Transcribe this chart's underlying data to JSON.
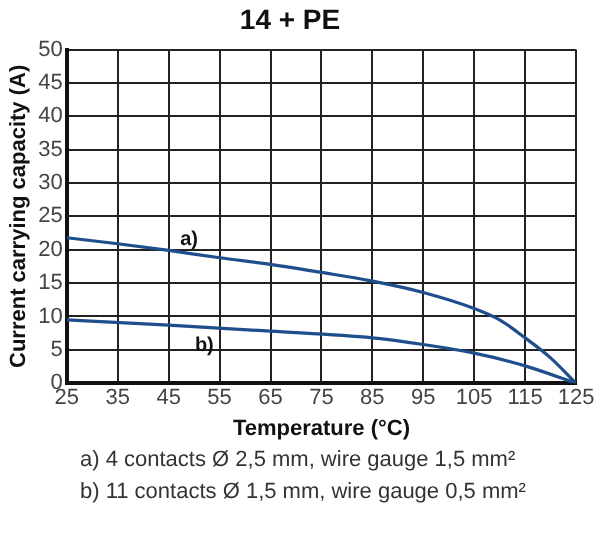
{
  "chart_data": {
    "type": "line",
    "title": "14 + PE",
    "xlabel": "Temperature (°C)",
    "ylabel": "Current carrying capacity (A)",
    "x": [
      25,
      35,
      45,
      55,
      65,
      75,
      85,
      95,
      105,
      110,
      115,
      120,
      125
    ],
    "series": [
      {
        "name": "a)",
        "color": "#1f4e8c",
        "values": [
          21.8,
          20.9,
          19.9,
          18.8,
          17.8,
          16.6,
          15.3,
          13.6,
          11.2,
          9.5,
          6.8,
          3.8,
          0
        ]
      },
      {
        "name": "b)",
        "color": "#1f4e8c",
        "x": [
          25,
          45,
          65,
          85,
          95,
          105,
          115,
          125
        ],
        "values": [
          9.5,
          8.7,
          7.8,
          6.8,
          5.8,
          4.5,
          2.6,
          0
        ]
      }
    ],
    "xlim": [
      25,
      125
    ],
    "xticks": [
      25,
      35,
      45,
      55,
      65,
      75,
      85,
      95,
      105,
      115,
      125
    ],
    "ylim": [
      0,
      50
    ],
    "yticks": [
      0,
      5,
      10,
      15,
      20,
      25,
      30,
      35,
      40,
      45,
      50
    ],
    "grid": true,
    "legend": false,
    "marker": "none",
    "line_style": "solid",
    "annotations": [
      "a) 4 contacts Ø 2,5 mm, wire gauge 1,5 mm²",
      "b) 11 contacts Ø 1,5 mm, wire gauge 0,5 mm²"
    ]
  }
}
